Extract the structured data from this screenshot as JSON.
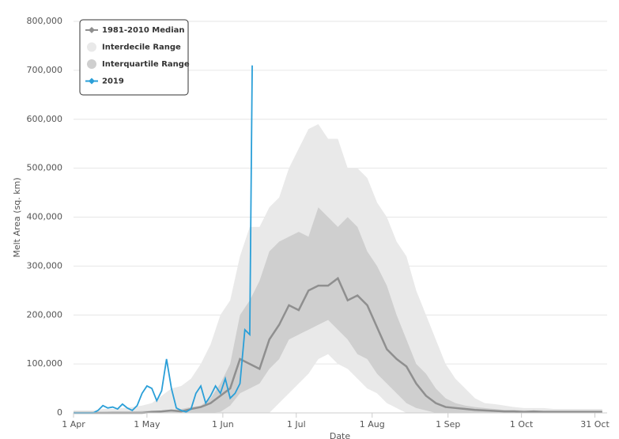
{
  "chart_data": {
    "type": "line",
    "y_label": "Melt Area (sq. km)",
    "x_label": "Date",
    "xlim": [
      0,
      218
    ],
    "ylim": [
      0,
      800000
    ],
    "xticks": [
      {
        "value": 0,
        "label": "1 Apr"
      },
      {
        "value": 30,
        "label": "1 May"
      },
      {
        "value": 61,
        "label": "1 Jun"
      },
      {
        "value": 91,
        "label": "1 Jul"
      },
      {
        "value": 122,
        "label": "1 Aug"
      },
      {
        "value": 153,
        "label": "1 Sep"
      },
      {
        "value": 183,
        "label": "1 Oct"
      },
      {
        "value": 213,
        "label": "31 Oct"
      }
    ],
    "yticks": [
      0,
      {
        "value": 100000,
        "label": "100,000"
      },
      {
        "value": 200000,
        "label": "200,000"
      },
      {
        "value": 300000,
        "label": "300,000"
      },
      {
        "value": 400000,
        "label": "400,000"
      },
      {
        "value": 500000,
        "label": "500,000"
      },
      {
        "value": 600000,
        "label": "600,000"
      },
      {
        "value": 700000,
        "label": "700,000"
      },
      {
        "value": 800000,
        "label": "800,000"
      }
    ],
    "grid": true,
    "x": [
      0,
      4,
      8,
      12,
      16,
      20,
      24,
      28,
      32,
      36,
      40,
      44,
      48,
      52,
      56,
      60,
      64,
      68,
      72,
      76,
      80,
      84,
      88,
      92,
      96,
      100,
      104,
      108,
      112,
      116,
      120,
      124,
      128,
      132,
      136,
      140,
      144,
      148,
      152,
      156,
      160,
      164,
      168,
      172,
      176,
      180,
      184,
      188,
      192,
      196,
      200,
      204,
      208,
      212,
      216
    ],
    "series": [
      {
        "name": "1981-2010 Median",
        "color": "#8f8f8f",
        "values": [
          0,
          0,
          0,
          0,
          0,
          0,
          0,
          0,
          2000,
          3000,
          5000,
          3000,
          8000,
          12000,
          20000,
          35000,
          50000,
          110000,
          100000,
          90000,
          150000,
          180000,
          220000,
          210000,
          250000,
          260000,
          260000,
          275000,
          230000,
          240000,
          220000,
          175000,
          130000,
          110000,
          95000,
          60000,
          35000,
          20000,
          12000,
          10000,
          8000,
          6000,
          5000,
          4000,
          3000,
          3000,
          2000,
          3000,
          2000,
          2000,
          2000,
          2000,
          2000,
          2000,
          2000
        ]
      },
      {
        "name": "Interdecile Range",
        "color": "#e9e9e9",
        "high": [
          5000,
          5000,
          5000,
          8000,
          8000,
          10000,
          12000,
          15000,
          20000,
          35000,
          50000,
          55000,
          70000,
          100000,
          140000,
          200000,
          230000,
          320000,
          380000,
          380000,
          420000,
          440000,
          500000,
          540000,
          580000,
          590000,
          560000,
          560000,
          500000,
          500000,
          480000,
          430000,
          400000,
          350000,
          320000,
          250000,
          200000,
          150000,
          100000,
          70000,
          50000,
          30000,
          20000,
          18000,
          15000,
          12000,
          10000,
          10000,
          10000,
          8000,
          8000,
          8000,
          8000,
          8000,
          8000
        ],
        "low": [
          0,
          0,
          0,
          0,
          0,
          0,
          0,
          0,
          0,
          0,
          0,
          0,
          0,
          0,
          0,
          0,
          0,
          0,
          0,
          0,
          0,
          20000,
          40000,
          60000,
          80000,
          110000,
          120000,
          100000,
          90000,
          70000,
          50000,
          40000,
          20000,
          10000,
          0,
          0,
          0,
          0,
          0,
          0,
          0,
          0,
          0,
          0,
          0,
          0,
          0,
          0,
          0,
          0,
          0,
          0,
          0,
          0,
          0
        ]
      },
      {
        "name": "Interquartile Range",
        "color": "#cfcfcf",
        "high": [
          2000,
          2000,
          2000,
          2000,
          3000,
          3000,
          3000,
          4000,
          5000,
          5000,
          6000,
          8000,
          12000,
          15000,
          30000,
          60000,
          100000,
          200000,
          230000,
          270000,
          330000,
          350000,
          360000,
          370000,
          360000,
          420000,
          400000,
          380000,
          400000,
          380000,
          330000,
          300000,
          260000,
          200000,
          150000,
          100000,
          80000,
          50000,
          30000,
          20000,
          15000,
          12000,
          10000,
          8000,
          6000,
          6000,
          5000,
          5000,
          5000,
          5000,
          5000,
          5000,
          5000,
          5000,
          5000
        ],
        "low": [
          0,
          0,
          0,
          0,
          0,
          0,
          0,
          0,
          0,
          0,
          0,
          0,
          0,
          0,
          0,
          2000,
          15000,
          40000,
          50000,
          60000,
          90000,
          110000,
          150000,
          160000,
          170000,
          180000,
          190000,
          170000,
          150000,
          120000,
          110000,
          80000,
          60000,
          40000,
          20000,
          10000,
          5000,
          0,
          0,
          0,
          0,
          0,
          0,
          0,
          0,
          0,
          0,
          0,
          0,
          0,
          0,
          0,
          0,
          0,
          0
        ]
      },
      {
        "name": "2019",
        "color": "#2a9fd8",
        "x": [
          0,
          2,
          4,
          6,
          8,
          10,
          12,
          14,
          16,
          18,
          20,
          22,
          24,
          26,
          28,
          30,
          32,
          34,
          36,
          38,
          40,
          42,
          44,
          46,
          48,
          50,
          52,
          54,
          56,
          58,
          60,
          62,
          64,
          66,
          68,
          70,
          72,
          73
        ],
        "values": [
          0,
          0,
          0,
          0,
          0,
          5000,
          15000,
          10000,
          12000,
          8000,
          18000,
          10000,
          5000,
          15000,
          40000,
          55000,
          50000,
          25000,
          45000,
          110000,
          50000,
          10000,
          5000,
          2000,
          8000,
          40000,
          55000,
          20000,
          35000,
          55000,
          40000,
          70000,
          30000,
          40000,
          60000,
          170000,
          160000,
          710000
        ]
      }
    ]
  }
}
